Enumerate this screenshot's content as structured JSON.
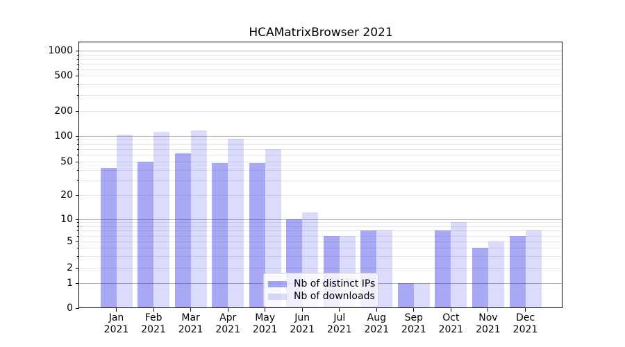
{
  "chart_data": {
    "type": "bar",
    "title": "HCAMatrixBrowser 2021",
    "categories": [
      "Jan",
      "Feb",
      "Mar",
      "Apr",
      "May",
      "Jun",
      "Jul",
      "Aug",
      "Sep",
      "Oct",
      "Nov",
      "Dec"
    ],
    "category_year": "2021",
    "series": [
      {
        "name": "Nb of distinct IPs",
        "color": "rgba(25,25,230,0.38)",
        "values": [
          42,
          50,
          62,
          48,
          48,
          10,
          6,
          7,
          1,
          7,
          4,
          6
        ]
      },
      {
        "name": "Nb of downloads",
        "color": "rgba(25,25,230,0.155)",
        "values": [
          104,
          111,
          117,
          92,
          70,
          12,
          6,
          7,
          1,
          9,
          5,
          7
        ]
      }
    ],
    "xlabel": "",
    "ylabel": "",
    "y_tick_labels": [
      "0",
      "1",
      "2",
      "5",
      "10",
      "20",
      "50",
      "100",
      "200",
      "500",
      "1000"
    ],
    "y_ticks": [
      0,
      1,
      2,
      5,
      10,
      20,
      50,
      100,
      200,
      500,
      1000
    ],
    "ylim": [
      0,
      1300
    ],
    "yscale": "symlog",
    "grid": true,
    "legend_position": "lower-center",
    "colors": {
      "major_gridline": "#b4b4b4",
      "minor_gridline": "#e7e7e7",
      "axis": "#000000",
      "background": "#ffffff"
    }
  }
}
